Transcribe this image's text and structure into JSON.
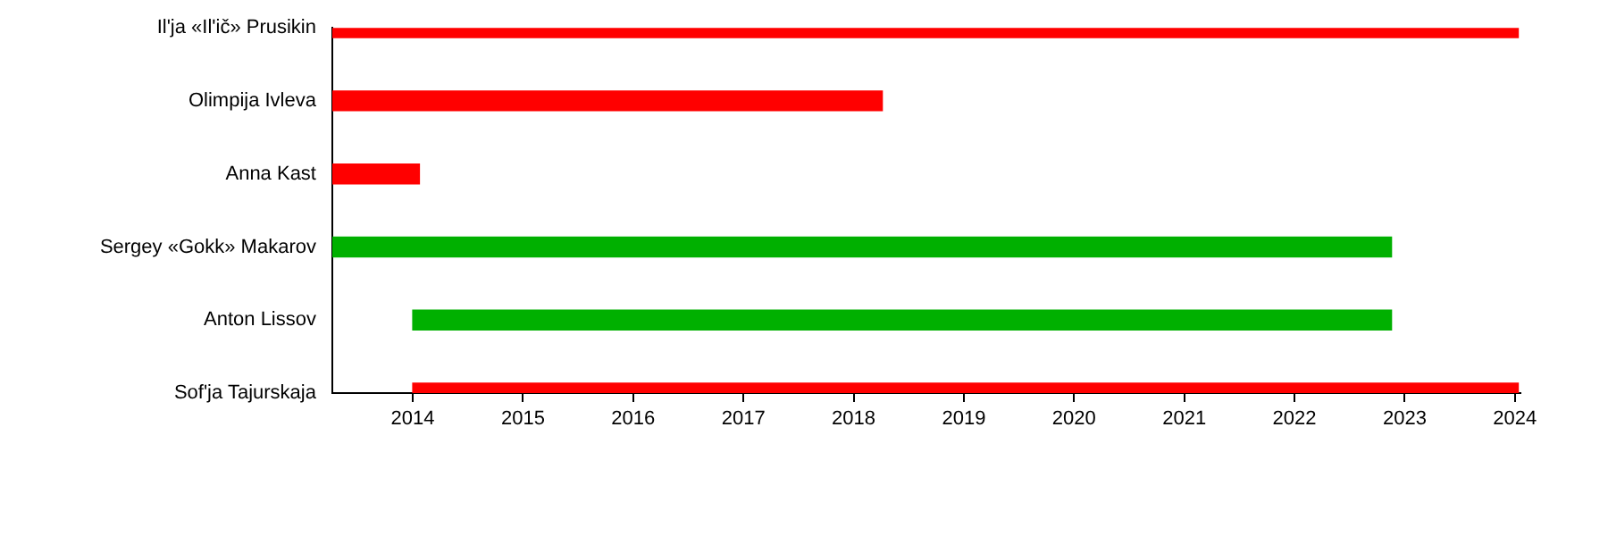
{
  "chart_data": {
    "type": "bar",
    "orientation": "horizontal",
    "categories": [
      "Il'ja «Il'ič» Prusikin",
      "Olimpija Ivleva",
      "Anna Kast",
      "Sergey «Gokk» Makarov",
      "Anton Lissov",
      "Sof'ja Tajurskaja"
    ],
    "base": [
      2013.27,
      2013.27,
      2013.27,
      2013.27,
      2014.0,
      2014.0
    ],
    "values": [
      10.76,
      4.99,
      0.79,
      9.61,
      8.88,
      10.03
    ],
    "colors": [
      "#ff0000",
      "#ff0000",
      "#ff0000",
      "#00b000",
      "#00b000",
      "#ff0000"
    ],
    "xlim": [
      2013.27,
      2024.05
    ],
    "xticks": [
      2014,
      2015,
      2016,
      2017,
      2018,
      2019,
      2020,
      2021,
      2022,
      2023,
      2024
    ],
    "grid": false,
    "legend": false
  }
}
